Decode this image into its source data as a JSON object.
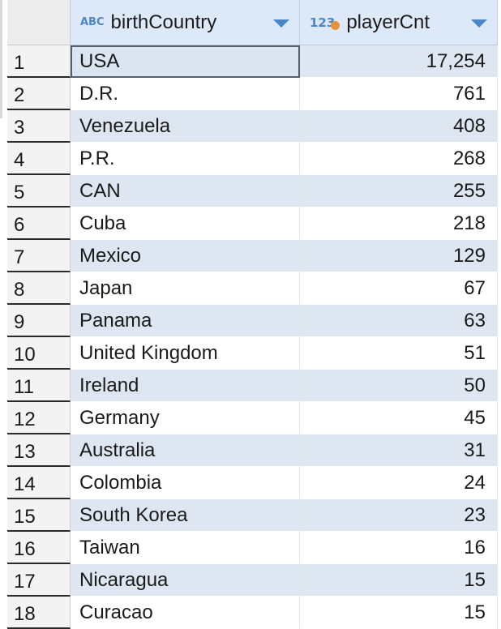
{
  "colors": {
    "header_bg": "#dde9f8",
    "row_alt_bg": "#dee6f1",
    "accent": "#4a86c8",
    "numeric_dot": "#e8923a"
  },
  "columns": [
    {
      "type_badge": "ABC",
      "type_icon": "string-type-icon",
      "name": "birthCountry",
      "menu_icon": "dropdown-arrow-icon"
    },
    {
      "type_badge": "123",
      "type_icon": "numeric-type-icon",
      "name": "playerCnt",
      "menu_icon": "dropdown-arrow-icon"
    }
  ],
  "rows": [
    {
      "num": "1",
      "country": "USA",
      "count": "17,254"
    },
    {
      "num": "2",
      "country": "D.R.",
      "count": "761"
    },
    {
      "num": "3",
      "country": "Venezuela",
      "count": "408"
    },
    {
      "num": "4",
      "country": "P.R.",
      "count": "268"
    },
    {
      "num": "5",
      "country": "CAN",
      "count": "255"
    },
    {
      "num": "6",
      "country": "Cuba",
      "count": "218"
    },
    {
      "num": "7",
      "country": "Mexico",
      "count": "129"
    },
    {
      "num": "8",
      "country": "Japan",
      "count": "67"
    },
    {
      "num": "9",
      "country": "Panama",
      "count": "63"
    },
    {
      "num": "10",
      "country": "United Kingdom",
      "count": "51"
    },
    {
      "num": "11",
      "country": "Ireland",
      "count": "50"
    },
    {
      "num": "12",
      "country": "Germany",
      "count": "45"
    },
    {
      "num": "13",
      "country": "Australia",
      "count": "31"
    },
    {
      "num": "14",
      "country": "Colombia",
      "count": "24"
    },
    {
      "num": "15",
      "country": "South Korea",
      "count": "23"
    },
    {
      "num": "16",
      "country": "Taiwan",
      "count": "16"
    },
    {
      "num": "17",
      "country": "Nicaragua",
      "count": "15"
    },
    {
      "num": "18",
      "country": "Curacao",
      "count": "15"
    }
  ]
}
